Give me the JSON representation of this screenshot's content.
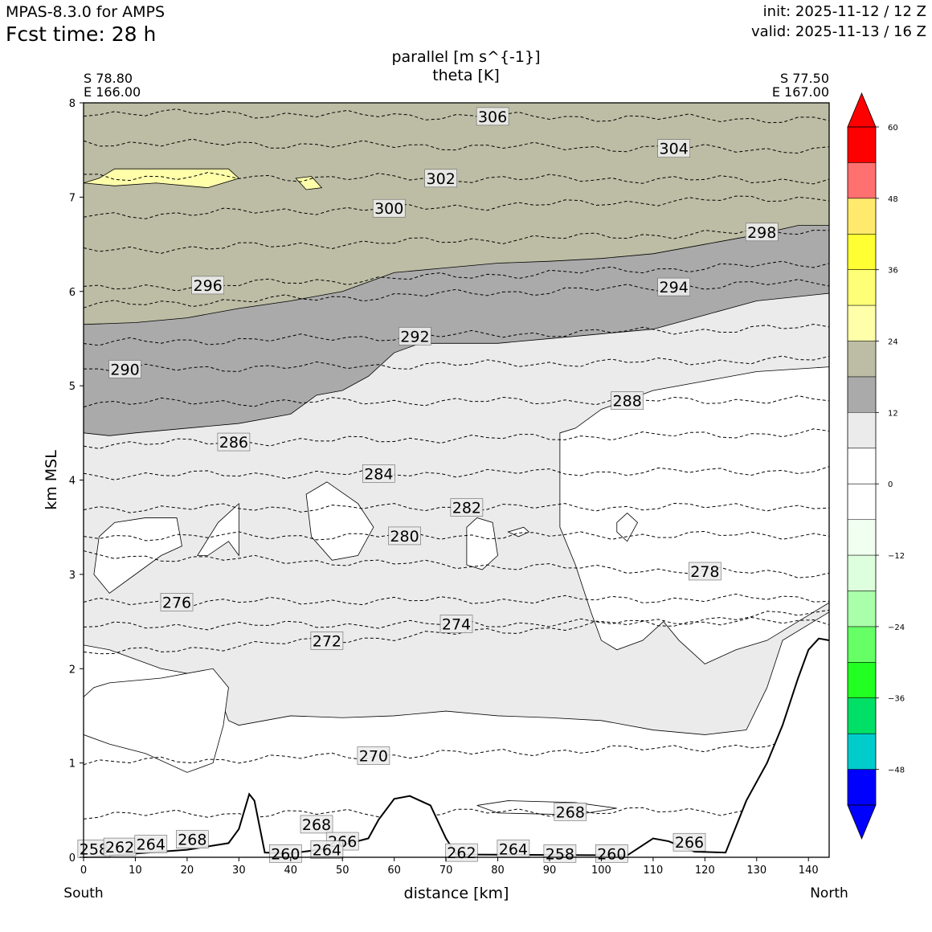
{
  "header": {
    "model": "MPAS-8.3.0 for AMPS",
    "fcst_time": "Fcst time:   28 h",
    "init": "init: 2025-11-12 / 12 Z",
    "valid": "valid: 2025-11-13 / 16 Z"
  },
  "plot": {
    "title_line1": "parallel [m s^{-1}]",
    "title_line2": "theta [K]",
    "left_endpoint": {
      "lat": "S 78.80",
      "lon": "E 166.00"
    },
    "right_endpoint": {
      "lat": "S 77.50",
      "lon": "E 167.00"
    },
    "south_label": "South",
    "north_label": "North"
  },
  "chart_data": {
    "type": "cross-section contour",
    "xlabel": "distance [km]",
    "ylabel": "km MSL",
    "xlim": [
      0,
      144
    ],
    "ylim": [
      0,
      8
    ],
    "x_ticks": [
      0,
      10,
      20,
      30,
      40,
      50,
      60,
      70,
      80,
      90,
      100,
      110,
      120,
      130,
      140
    ],
    "y_ticks": [
      0,
      1,
      2,
      3,
      4,
      5,
      6,
      7,
      8
    ],
    "colorbar": {
      "levels": [
        -54,
        -48,
        -42,
        -36,
        -30,
        -24,
        -18,
        -12,
        -6,
        0,
        6,
        12,
        18,
        24,
        30,
        36,
        42,
        48,
        54,
        60
      ],
      "tick_labels": [
        "60",
        "48",
        "36",
        "24",
        "12",
        "0",
        "−12",
        "−24",
        "−36",
        "−48"
      ],
      "tick_values": [
        60,
        48,
        36,
        24,
        12,
        0,
        -12,
        -24,
        -36,
        -48
      ],
      "colors": [
        "#0000ff",
        "#00cccc",
        "#00e066",
        "#22ff22",
        "#66ff66",
        "#aaffaa",
        "#ddffdd",
        "#f0fff0",
        "#ffffff",
        "#ffffff",
        "#ebebeb",
        "#aaaaaa",
        "#bdbda5",
        "#ffffaa",
        "#ffff77",
        "#ffff33",
        "#ffea6e",
        "#ff7070",
        "#ff0000"
      ],
      "under_color": "#0000ff",
      "over_color": "#ff0000"
    },
    "wind_bands": [
      {
        "name": "6-12",
        "color": "#ebebeb",
        "top": [
          [
            0,
            4.5
          ],
          [
            5,
            4.47
          ],
          [
            10,
            4.5
          ],
          [
            20,
            4.55
          ],
          [
            30,
            4.6
          ],
          [
            40,
            4.7
          ],
          [
            45,
            4.9
          ],
          [
            50,
            4.95
          ],
          [
            55,
            5.1
          ],
          [
            60,
            5.35
          ],
          [
            65,
            5.45
          ],
          [
            80,
            5.45
          ],
          [
            90,
            5.5
          ],
          [
            100,
            5.55
          ],
          [
            110,
            5.6
          ],
          [
            120,
            5.75
          ],
          [
            130,
            5.9
          ],
          [
            144,
            5.98
          ]
        ]
      },
      {
        "name": "12-18",
        "color": "#aaaaaa",
        "top": [
          [
            0,
            5.65
          ],
          [
            10,
            5.67
          ],
          [
            20,
            5.72
          ],
          [
            30,
            5.82
          ],
          [
            40,
            5.9
          ],
          [
            50,
            6.0
          ],
          [
            55,
            6.1
          ],
          [
            60,
            6.2
          ],
          [
            70,
            6.25
          ],
          [
            80,
            6.3
          ],
          [
            90,
            6.32
          ],
          [
            100,
            6.35
          ],
          [
            110,
            6.4
          ],
          [
            120,
            6.5
          ],
          [
            130,
            6.6
          ],
          [
            138,
            6.7
          ],
          [
            144,
            6.7
          ]
        ]
      },
      {
        "name": "18-24",
        "color": "#bdbda5",
        "top": [
          [
            0,
            8
          ],
          [
            144,
            8
          ]
        ]
      }
    ],
    "theta_contours": [
      {
        "value": 306,
        "y0": 7.9,
        "y1": 7.82,
        "label_x": 79,
        "label": "306"
      },
      {
        "value": 304,
        "y0": 7.58,
        "y1": 7.5,
        "label_x": 114,
        "label": "304"
      },
      {
        "value": 302,
        "y0": 7.22,
        "y1": 7.18,
        "label_x": 69,
        "label": "302"
      },
      {
        "value": 300,
        "y0": 6.8,
        "y1": 7.0,
        "label_x": 59,
        "label": "300"
      },
      {
        "value": 298,
        "y0": 6.43,
        "y1": 6.65,
        "label_x": 131,
        "label": "298"
      },
      {
        "value": 296,
        "y0": 6.02,
        "y1": 6.3,
        "label_x": 24,
        "label": "296"
      },
      {
        "value": 294,
        "y0": 5.85,
        "y1": 6.1,
        "label_x": 114,
        "label": "294"
      },
      {
        "value": 292,
        "y0": 5.45,
        "y1": 5.62,
        "label_x": 64,
        "label": "292"
      },
      {
        "value": 290,
        "y0": 5.17,
        "y1": 5.28,
        "label_x": 8,
        "label": "290"
      },
      {
        "value": 288,
        "y0": 4.82,
        "y1": 4.85,
        "label_x": 105,
        "label": "288"
      },
      {
        "value": 286,
        "y0": 4.38,
        "y1": 4.5,
        "label_x": 29,
        "label": "286"
      },
      {
        "value": 284,
        "y0": 4.05,
        "y1": 4.1,
        "label_x": 57,
        "label": "284"
      },
      {
        "value": 282,
        "y0": 3.7,
        "y1": 3.72,
        "label_x": 74,
        "label": "282"
      },
      {
        "value": 280,
        "y0": 3.4,
        "y1": 3.42,
        "label_x": 62,
        "label": "280"
      },
      {
        "value": 278,
        "y0": 3.2,
        "y1": 3.0,
        "label_x": 120,
        "label": "278"
      },
      {
        "value": 276,
        "y0": 2.7,
        "y1": 2.75,
        "label_x": 18,
        "label": "276"
      },
      {
        "value": 274,
        "y0": 2.45,
        "y1": 2.5,
        "label_x": 72,
        "label": "274"
      },
      {
        "value": 272,
        "y0": 2.15,
        "y1": 2.6,
        "label_x": 47,
        "label": "272"
      },
      {
        "value": 270,
        "y0": 1.0,
        "y1": 1.2,
        "label_x": 56,
        "label": "270"
      },
      {
        "value": 268,
        "y0": 0.45,
        "y1": 0.5,
        "label_x": 94,
        "label": "268"
      }
    ],
    "near_surface_labels": [
      {
        "text": "258",
        "x": 2,
        "y": 0.09
      },
      {
        "text": "262",
        "x": 7,
        "y": 0.11
      },
      {
        "text": "264",
        "x": 13,
        "y": 0.14
      },
      {
        "text": "268",
        "x": 21,
        "y": 0.19
      },
      {
        "text": "268",
        "x": 45,
        "y": 0.35
      },
      {
        "text": "266",
        "x": 50,
        "y": 0.17
      },
      {
        "text": "260",
        "x": 39,
        "y": 0.04
      },
      {
        "text": "264",
        "x": 47,
        "y": 0.08
      },
      {
        "text": "262",
        "x": 73,
        "y": 0.05
      },
      {
        "text": "264",
        "x": 83,
        "y": 0.09
      },
      {
        "text": "258",
        "x": 92,
        "y": 0.04
      },
      {
        "text": "260",
        "x": 102,
        "y": 0.04
      },
      {
        "text": "266",
        "x": 117,
        "y": 0.16
      }
    ],
    "terrain": [
      [
        0,
        0
      ],
      [
        20,
        0.08
      ],
      [
        28,
        0.15
      ],
      [
        30,
        0.3
      ],
      [
        32,
        0.67
      ],
      [
        33,
        0.6
      ],
      [
        35,
        0.05
      ],
      [
        40,
        0.04
      ],
      [
        48,
        0.1
      ],
      [
        55,
        0.2
      ],
      [
        57,
        0.4
      ],
      [
        60,
        0.62
      ],
      [
        63,
        0.65
      ],
      [
        67,
        0.55
      ],
      [
        70,
        0.2
      ],
      [
        72,
        0.03
      ],
      [
        105,
        0.02
      ],
      [
        110,
        0.2
      ],
      [
        113,
        0.17
      ],
      [
        118,
        0.06
      ],
      [
        124,
        0.05
      ],
      [
        128,
        0.6
      ],
      [
        132,
        1.0
      ],
      [
        135,
        1.4
      ],
      [
        138,
        1.9
      ],
      [
        140,
        2.2
      ],
      [
        142,
        2.32
      ],
      [
        144,
        2.3
      ]
    ]
  }
}
